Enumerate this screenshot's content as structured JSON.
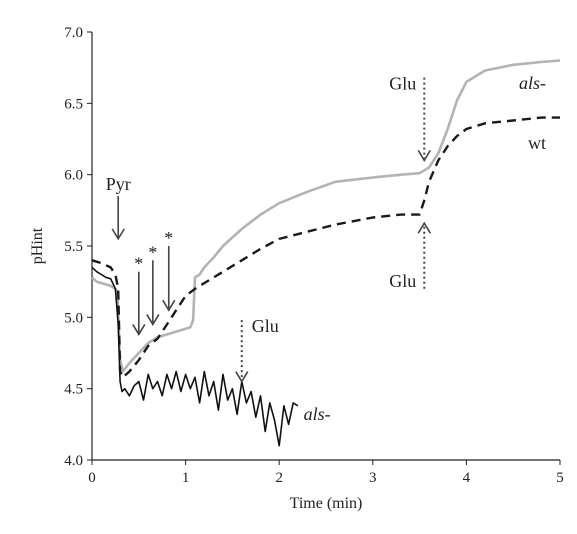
{
  "chart_data": {
    "type": "line",
    "title": "",
    "xlabel": "Time (min)",
    "ylabel": "pHint",
    "xlim": [
      0,
      5
    ],
    "ylim": [
      4.0,
      7.0
    ],
    "xticks": [
      0,
      1,
      2,
      3,
      4,
      5
    ],
    "yticks": [
      4.0,
      4.5,
      5.0,
      5.5,
      6.0,
      6.5,
      7.0
    ],
    "xtick_labels": [
      "0",
      "1",
      "2",
      "3",
      "4",
      "5"
    ],
    "ytick_labels": [
      "4.0",
      "4.5",
      "5.0",
      "5.5",
      "6.0",
      "6.5",
      "7.0"
    ],
    "grid": false,
    "legend": "none",
    "series": [
      {
        "label": "als-",
        "color": "#b3b3b3",
        "style": "solid",
        "x": [
          0,
          0.05,
          0.1,
          0.15,
          0.2,
          0.25,
          0.27,
          0.3,
          0.33,
          0.4,
          0.5,
          0.6,
          0.7,
          0.8,
          0.9,
          1.0,
          1.05,
          1.08,
          1.1,
          1.15,
          1.2,
          1.3,
          1.4,
          1.6,
          1.8,
          2.0,
          2.3,
          2.6,
          3.0,
          3.3,
          3.5,
          3.6,
          3.7,
          3.8,
          3.9,
          4.0,
          4.2,
          4.5,
          4.8,
          5.0
        ],
        "y": [
          5.28,
          5.25,
          5.24,
          5.23,
          5.22,
          5.2,
          5.18,
          4.7,
          4.62,
          4.68,
          4.75,
          4.82,
          4.86,
          4.88,
          4.9,
          4.92,
          4.93,
          4.98,
          5.28,
          5.3,
          5.35,
          5.42,
          5.5,
          5.62,
          5.72,
          5.8,
          5.88,
          5.95,
          5.98,
          6.0,
          6.01,
          6.05,
          6.15,
          6.32,
          6.52,
          6.65,
          6.73,
          6.77,
          6.79,
          6.8
        ]
      },
      {
        "label": "wt",
        "color": "#1a1a1a",
        "style": "dashed",
        "x": [
          0,
          0.1,
          0.2,
          0.25,
          0.28,
          0.3,
          0.33,
          0.4,
          0.5,
          0.6,
          0.7,
          0.8,
          0.9,
          1.0,
          1.1,
          1.2,
          1.4,
          1.6,
          1.8,
          2.0,
          2.3,
          2.6,
          3.0,
          3.3,
          3.5,
          3.55,
          3.6,
          3.7,
          3.8,
          3.9,
          4.0,
          4.2,
          4.5,
          4.8,
          5.0
        ],
        "y": [
          5.4,
          5.38,
          5.35,
          5.3,
          5.2,
          4.62,
          4.58,
          4.62,
          4.7,
          4.8,
          4.85,
          4.95,
          5.05,
          5.15,
          5.2,
          5.24,
          5.32,
          5.4,
          5.48,
          5.55,
          5.6,
          5.65,
          5.7,
          5.72,
          5.72,
          5.82,
          5.95,
          6.1,
          6.2,
          6.27,
          6.32,
          6.36,
          6.38,
          6.4,
          6.4
        ]
      },
      {
        "label": "als-",
        "color": "#111111",
        "style": "solid",
        "x": [
          0,
          0.05,
          0.1,
          0.15,
          0.2,
          0.25,
          0.28,
          0.3,
          0.32,
          0.35,
          0.4,
          0.45,
          0.5,
          0.55,
          0.6,
          0.65,
          0.7,
          0.75,
          0.8,
          0.85,
          0.9,
          0.95,
          1.0,
          1.05,
          1.1,
          1.15,
          1.2,
          1.25,
          1.3,
          1.35,
          1.4,
          1.45,
          1.5,
          1.55,
          1.6,
          1.65,
          1.7,
          1.75,
          1.8,
          1.85,
          1.9,
          1.95,
          2.0,
          2.05,
          2.1,
          2.15,
          2.2
        ],
        "y": [
          5.35,
          5.32,
          5.3,
          5.28,
          5.27,
          5.2,
          4.95,
          4.55,
          4.48,
          4.5,
          4.45,
          4.52,
          4.55,
          4.42,
          4.6,
          4.5,
          4.55,
          4.45,
          4.6,
          4.5,
          4.62,
          4.48,
          4.6,
          4.5,
          4.58,
          4.4,
          4.62,
          4.45,
          4.55,
          4.35,
          4.6,
          4.42,
          4.5,
          4.32,
          4.55,
          4.4,
          4.48,
          4.3,
          4.45,
          4.2,
          4.4,
          4.28,
          4.1,
          4.38,
          4.25,
          4.4,
          4.38
        ]
      }
    ],
    "annotations": [
      {
        "text": "Pyr",
        "x": 0.28,
        "arrow_from_y": 5.85,
        "arrow_to_y": 5.55,
        "arrow": "solid"
      },
      {
        "text": "*",
        "x": 0.5,
        "arrow_from_y": 5.32,
        "arrow_to_y": 4.88,
        "arrow": "solid"
      },
      {
        "text": "*",
        "x": 0.65,
        "arrow_from_y": 5.4,
        "arrow_to_y": 4.95,
        "arrow": "solid"
      },
      {
        "text": "*",
        "x": 0.82,
        "arrow_from_y": 5.5,
        "arrow_to_y": 5.05,
        "arrow": "solid"
      },
      {
        "text": "Glu",
        "x": 1.6,
        "arrow_from_y": 4.98,
        "arrow_to_y": 4.55,
        "arrow": "dotted",
        "label_side": "right"
      },
      {
        "text": "Glu",
        "x": 3.55,
        "arrow_from_y": 6.68,
        "arrow_to_y": 6.1,
        "arrow": "dotted",
        "label_side": "left"
      },
      {
        "text": "Glu",
        "x": 3.55,
        "arrow_from_y": 5.2,
        "arrow_to_y": 5.66,
        "arrow": "dotted",
        "label_side": "left"
      }
    ],
    "series_labels": [
      {
        "text": "als-",
        "italic": true,
        "x": 4.85,
        "y": 6.6
      },
      {
        "text": "wt",
        "italic": false,
        "x": 4.85,
        "y": 6.18
      },
      {
        "text": "als-",
        "italic": true,
        "x": 2.55,
        "y": 4.28
      }
    ]
  }
}
